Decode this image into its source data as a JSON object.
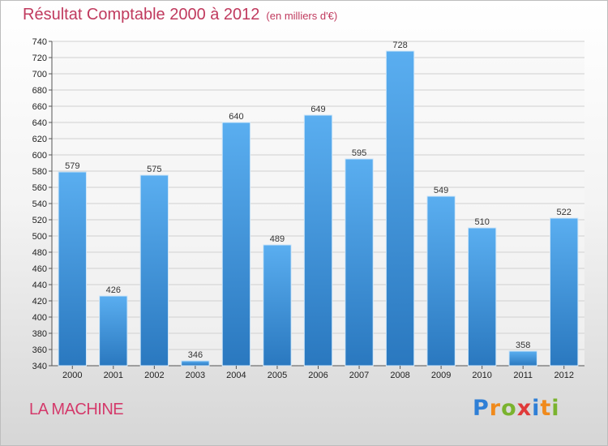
{
  "header": {
    "title": "Résultat Comptable 2000 à 2012",
    "subtitle": "(en milliers d'€)"
  },
  "footer": {
    "location": "LA MACHINE",
    "brand": [
      "P",
      "r",
      "o",
      "x",
      "i",
      "t",
      "i"
    ],
    "brand_colors": [
      "#2f7fd6",
      "#f08a1c",
      "#7ab32e",
      "#e03a3a",
      "#2f7fd6",
      "#f08a1c",
      "#7ab32e"
    ]
  },
  "colors": {
    "bar_top": "#5aaef0",
    "bar_bottom": "#2a78bf",
    "grid": "#d0d0d0",
    "title": "#c03a5e"
  },
  "chart_data": {
    "type": "bar",
    "title": "Résultat Comptable 2000 à 2012",
    "subtitle": "(en milliers d'€)",
    "xlabel": "",
    "ylabel": "",
    "categories": [
      "2000",
      "2001",
      "2002",
      "2003",
      "2004",
      "2005",
      "2006",
      "2007",
      "2008",
      "2009",
      "2010",
      "2011",
      "2012"
    ],
    "values": [
      579,
      426,
      575,
      346,
      640,
      489,
      649,
      595,
      728,
      549,
      510,
      358,
      522
    ],
    "ylim": [
      340,
      740
    ],
    "yticks": [
      340,
      360,
      380,
      400,
      420,
      440,
      460,
      480,
      500,
      520,
      540,
      560,
      580,
      600,
      620,
      640,
      660,
      680,
      700,
      720,
      740
    ],
    "grid": true
  }
}
